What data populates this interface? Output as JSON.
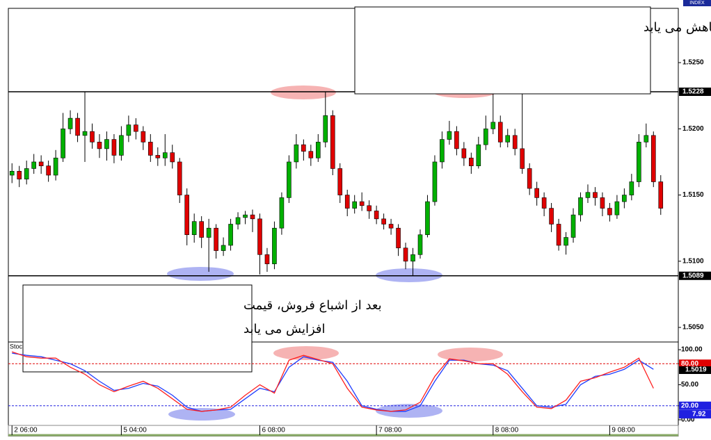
{
  "chart_data": [
    {
      "type": "candlestick",
      "corner_label": "INDEX",
      "categories": [
        "2 06:00",
        null,
        null,
        null,
        null,
        null,
        null,
        null,
        null,
        null,
        null,
        null,
        null,
        null,
        null,
        "5 04:00",
        null,
        null,
        null,
        null,
        null,
        null,
        null,
        null,
        null,
        null,
        null,
        null,
        null,
        null,
        null,
        null,
        null,
        null,
        "6 08:00",
        null,
        null,
        null,
        null,
        null,
        null,
        null,
        null,
        null,
        null,
        null,
        null,
        null,
        null,
        null,
        "7 08:00",
        null,
        null,
        null,
        null,
        null,
        null,
        null,
        null,
        null,
        null,
        null,
        null,
        null,
        null,
        null,
        "8 08:00",
        null,
        null,
        null,
        null,
        null,
        null,
        null,
        null,
        null,
        null,
        null,
        null,
        null,
        null,
        null,
        "9 08:00",
        null,
        null,
        null,
        null,
        null,
        null,
        null
      ],
      "open": [
        1.5165,
        1.5168,
        1.5162,
        1.517,
        1.5175,
        1.5172,
        1.5165,
        1.5178,
        1.52,
        1.5208,
        1.5195,
        1.5198,
        1.519,
        1.5185,
        1.5192,
        1.518,
        1.5195,
        1.5203,
        1.5198,
        1.519,
        1.518,
        1.5178,
        1.5182,
        1.5175,
        1.515,
        1.512,
        1.513,
        1.5118,
        1.5125,
        1.5108,
        1.5112,
        1.5128,
        1.5133,
        1.5135,
        1.5132,
        1.5105,
        1.5098,
        1.5125,
        1.5148,
        1.5175,
        1.5188,
        1.5183,
        1.5178,
        1.519,
        1.521,
        1.517,
        1.515,
        1.514,
        1.5145,
        1.5142,
        1.5138,
        1.5132,
        1.5128,
        1.5125,
        1.511,
        1.51,
        1.5105,
        1.512,
        1.5145,
        1.5175,
        1.5192,
        1.5198,
        1.5185,
        1.5178,
        1.5172,
        1.5188,
        1.52,
        1.5205,
        1.519,
        1.5195,
        1.5185,
        1.517,
        1.5155,
        1.5148,
        1.514,
        1.5128,
        1.5112,
        1.5118,
        1.5135,
        1.5148,
        1.5152,
        1.5148,
        1.514,
        1.5135,
        1.5145,
        1.515,
        1.516,
        1.519,
        1.5195,
        1.516
      ],
      "high": [
        1.5174,
        1.5172,
        1.5176,
        1.5181,
        1.518,
        1.5176,
        1.5184,
        1.5212,
        1.5214,
        1.5212,
        1.5228,
        1.5204,
        1.5196,
        1.5198,
        1.5196,
        1.5202,
        1.521,
        1.5208,
        1.5202,
        1.5196,
        1.5186,
        1.5196,
        1.5188,
        1.5178,
        1.5155,
        1.5136,
        1.5134,
        1.5132,
        1.5128,
        1.5118,
        1.5132,
        1.5137,
        1.5138,
        1.5139,
        1.5136,
        1.511,
        1.513,
        1.5152,
        1.518,
        1.5196,
        1.5192,
        1.5188,
        1.5196,
        1.5228,
        1.5214,
        1.5174,
        1.5154,
        1.515,
        1.5152,
        1.5146,
        1.5142,
        1.5136,
        1.5132,
        1.5128,
        1.5114,
        1.511,
        1.5124,
        1.515,
        1.518,
        1.5198,
        1.5206,
        1.5202,
        1.519,
        1.5182,
        1.5194,
        1.521,
        1.5228,
        1.521,
        1.52,
        1.52,
        1.5228,
        1.5174,
        1.516,
        1.5152,
        1.5144,
        1.5132,
        1.5122,
        1.514,
        1.5152,
        1.5158,
        1.5156,
        1.5152,
        1.5144,
        1.515,
        1.5155,
        1.5166,
        1.5196,
        1.5204,
        1.5198,
        1.5165
      ],
      "low": [
        1.5159,
        1.5156,
        1.5158,
        1.5166,
        1.5166,
        1.516,
        1.5161,
        1.5175,
        1.5196,
        1.519,
        1.5175,
        1.5185,
        1.5178,
        1.5176,
        1.5174,
        1.5176,
        1.519,
        1.5192,
        1.5184,
        1.5175,
        1.5172,
        1.5172,
        1.517,
        1.5144,
        1.5112,
        1.5114,
        1.511,
        1.5092,
        1.5102,
        1.5104,
        1.5108,
        1.5124,
        1.5128,
        1.5122,
        1.509,
        1.5092,
        1.5094,
        1.512,
        1.5144,
        1.517,
        1.5176,
        1.5172,
        1.5175,
        1.5186,
        1.5165,
        1.5144,
        1.5134,
        1.5136,
        1.5138,
        1.5132,
        1.5128,
        1.5124,
        1.512,
        1.5104,
        1.5094,
        1.5089,
        1.5102,
        1.5118,
        1.5142,
        1.517,
        1.5188,
        1.518,
        1.5172,
        1.5166,
        1.517,
        1.5184,
        1.5196,
        1.5186,
        1.5186,
        1.518,
        1.5166,
        1.515,
        1.5142,
        1.5134,
        1.5122,
        1.5108,
        1.5105,
        1.5114,
        1.513,
        1.5144,
        1.5142,
        1.5134,
        1.513,
        1.5132,
        1.514,
        1.5146,
        1.5156,
        1.5186,
        1.5156,
        1.5135
      ],
      "close": [
        1.5168,
        1.5162,
        1.517,
        1.5175,
        1.5172,
        1.5165,
        1.5178,
        1.52,
        1.5208,
        1.5195,
        1.5198,
        1.519,
        1.5185,
        1.5192,
        1.518,
        1.5195,
        1.5203,
        1.5198,
        1.519,
        1.518,
        1.5178,
        1.5182,
        1.5175,
        1.515,
        1.512,
        1.513,
        1.5118,
        1.5125,
        1.5108,
        1.5112,
        1.5128,
        1.5133,
        1.5135,
        1.5132,
        1.5105,
        1.5098,
        1.5125,
        1.5148,
        1.5175,
        1.5188,
        1.5183,
        1.5178,
        1.519,
        1.521,
        1.517,
        1.515,
        1.514,
        1.5145,
        1.5142,
        1.5138,
        1.5132,
        1.5128,
        1.5125,
        1.511,
        1.51,
        1.5105,
        1.512,
        1.5145,
        1.5175,
        1.5192,
        1.5198,
        1.5185,
        1.5178,
        1.5172,
        1.5188,
        1.52,
        1.5205,
        1.519,
        1.5195,
        1.5185,
        1.517,
        1.5155,
        1.5148,
        1.514,
        1.5128,
        1.5112,
        1.5118,
        1.5135,
        1.5148,
        1.5152,
        1.5148,
        1.514,
        1.5135,
        1.5145,
        1.515,
        1.516,
        1.519,
        1.5195,
        1.516,
        1.514
      ],
      "up_color": "#00b000",
      "down_color": "#e00000",
      "ylim": [
        1.5039,
        1.5291
      ],
      "yticks": [
        {
          "value": 1.505,
          "label": "1.5050"
        },
        {
          "value": 1.51,
          "label": "1.5100"
        },
        {
          "value": 1.515,
          "label": "1.5150"
        },
        {
          "value": 1.52,
          "label": "1.5200"
        },
        {
          "value": 1.525,
          "label": "1.5250"
        }
      ],
      "levels": [
        {
          "value": 1.5228,
          "label": "1.5228"
        },
        {
          "value": 1.5089,
          "label": "1.5089"
        }
      ],
      "annotations": [
        {
          "lines": [
            "بعد از اشباع خرید، قیمت کاهش می یابد"
          ]
        },
        {
          "lines": [
            "بعد از اشباع فروش، قیمت",
            "افزایش می یابد"
          ]
        }
      ]
    },
    {
      "type": "line",
      "title": "Stoch",
      "x": [
        0,
        2,
        4,
        6,
        8,
        10,
        12,
        14,
        16,
        18,
        20,
        22,
        24,
        26,
        28,
        30,
        32,
        34,
        36,
        38,
        40,
        42,
        44,
        46,
        48,
        50,
        52,
        54,
        56,
        58,
        60,
        62,
        64,
        66,
        68,
        70,
        72,
        74,
        76,
        78,
        80,
        82,
        84,
        86,
        88
      ],
      "series": [
        {
          "color": "#1e3cff",
          "values": [
            95,
            92,
            90,
            85,
            80,
            70,
            55,
            42,
            45,
            52,
            48,
            35,
            18,
            12,
            14,
            15,
            30,
            45,
            40,
            75,
            90,
            85,
            82,
            55,
            20,
            15,
            12,
            12,
            20,
            55,
            85,
            85,
            80,
            78,
            70,
            45,
            20,
            18,
            22,
            50,
            62,
            65,
            72,
            85,
            72
          ]
        },
        {
          "color": "#ff2020",
          "values": [
            97,
            90,
            88,
            88,
            75,
            65,
            50,
            40,
            48,
            55,
            45,
            30,
            15,
            12,
            14,
            18,
            35,
            50,
            38,
            85,
            92,
            86,
            80,
            45,
            18,
            14,
            12,
            14,
            25,
            62,
            87,
            84,
            80,
            80,
            65,
            40,
            18,
            16,
            28,
            55,
            60,
            68,
            75,
            88,
            45
          ]
        }
      ],
      "ylim": [
        -8,
        110
      ],
      "yticks": [
        {
          "value": 0,
          "label": "0.00"
        },
        {
          "value": 20,
          "label": "20.00"
        },
        {
          "value": 50,
          "label": "50.00"
        },
        {
          "value": 80,
          "label": "80.00"
        },
        {
          "value": 100,
          "label": "100.00"
        }
      ],
      "levels": [
        {
          "value": 80,
          "color": "#e00000"
        },
        {
          "value": 20,
          "color": "#2020e0"
        }
      ],
      "readouts": [
        {
          "value": 7.92,
          "label": "7.92"
        }
      ],
      "marker_text": "1.5019"
    }
  ]
}
